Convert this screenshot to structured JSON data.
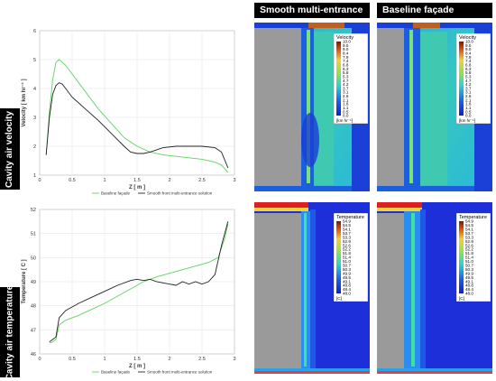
{
  "headers": {
    "smooth": "Smooth multi-entrance",
    "baseline": "Baseline façade"
  },
  "row_labels": {
    "velocity": "Cavity air velocity",
    "temperature": "Cavity air temperature"
  },
  "colorbars": {
    "velocity": {
      "title": "Velocity",
      "unit": "[km hr⁻¹]",
      "ticks": [
        "10.0",
        "9.5",
        "9.0",
        "8.4",
        "7.9",
        "7.4",
        "6.8",
        "6.3",
        "5.8",
        "5.3",
        "4.7",
        "4.2",
        "3.7",
        "3.1",
        "2.6",
        "2.1",
        "1.6",
        "1.1",
        "0.5",
        "0.0"
      ]
    },
    "temperature": {
      "title": "Temperature",
      "unit": "[C]",
      "ticks": [
        "54.9",
        "54.5",
        "54.1",
        "53.7",
        "53.3",
        "52.9",
        "52.6",
        "52.2",
        "51.8",
        "51.4",
        "51.0",
        "50.7",
        "50.3",
        "49.9",
        "49.5",
        "49.1",
        "48.8",
        "48.4",
        "48.0"
      ]
    }
  },
  "colors": {
    "baseline": "#5fd35f",
    "smooth": "#222222"
  },
  "chart_data": [
    {
      "type": "line",
      "xlabel": "Z [ m ]",
      "ylabel": "Velocity [ km hr⁻¹ ]",
      "xlim": [
        0,
        3
      ],
      "ylim": [
        1,
        6
      ],
      "xticks": [
        "0",
        "0.5",
        "1",
        "1.5",
        "2",
        "2.5",
        "3"
      ],
      "yticks": [
        "1",
        "2",
        "3",
        "4",
        "5",
        "6"
      ],
      "grid": true,
      "legend": "bottom",
      "series": [
        {
          "name": "Baseline façade",
          "x": [
            0.1,
            0.15,
            0.2,
            0.25,
            0.3,
            0.4,
            0.5,
            0.7,
            0.9,
            1.1,
            1.3,
            1.5,
            1.7,
            1.9,
            2.1,
            2.3,
            2.5,
            2.7,
            2.8,
            2.9
          ],
          "y": [
            1.7,
            3.2,
            4.3,
            4.9,
            5.0,
            4.8,
            4.5,
            3.9,
            3.3,
            2.8,
            2.3,
            2.0,
            1.8,
            1.7,
            1.65,
            1.6,
            1.55,
            1.45,
            1.35,
            1.1
          ]
        },
        {
          "name": "Smooth front multi-entrance solution",
          "x": [
            0.1,
            0.15,
            0.2,
            0.25,
            0.3,
            0.35,
            0.4,
            0.5,
            0.6,
            0.7,
            0.9,
            1.1,
            1.3,
            1.4,
            1.5,
            1.6,
            1.7,
            1.9,
            2.1,
            2.3,
            2.5,
            2.7,
            2.8,
            2.9
          ],
          "y": [
            1.7,
            3.0,
            3.8,
            4.1,
            4.2,
            4.15,
            4.0,
            3.7,
            3.5,
            3.3,
            2.9,
            2.45,
            2.0,
            1.8,
            1.75,
            1.75,
            1.8,
            1.95,
            2.0,
            2.0,
            2.0,
            1.95,
            1.8,
            1.25
          ]
        }
      ]
    },
    {
      "type": "line",
      "xlabel": "Z [ m ]",
      "ylabel": "Temperature [ C ]",
      "xlim": [
        0,
        3
      ],
      "ylim": [
        46,
        52
      ],
      "xticks": [
        "0",
        "0.5",
        "1",
        "1.5",
        "2",
        "2.5",
        "3"
      ],
      "yticks": [
        "46",
        "47",
        "48",
        "49",
        "50",
        "51",
        "52"
      ],
      "grid": true,
      "legend": "bottom",
      "series": [
        {
          "name": "Baseline façade",
          "x": [
            0.15,
            0.2,
            0.25,
            0.3,
            0.4,
            0.6,
            0.8,
            1.0,
            1.2,
            1.4,
            1.6,
            1.8,
            2.0,
            2.2,
            2.4,
            2.6,
            2.75,
            2.85,
            2.9
          ],
          "y": [
            46.45,
            46.5,
            46.6,
            47.2,
            47.4,
            47.6,
            47.85,
            48.1,
            48.4,
            48.7,
            49.0,
            49.2,
            49.35,
            49.5,
            49.65,
            49.8,
            50.0,
            50.8,
            51.4
          ]
        },
        {
          "name": "Smooth front multi-entrance solution",
          "x": [
            0.15,
            0.2,
            0.25,
            0.3,
            0.4,
            0.6,
            0.8,
            1.0,
            1.2,
            1.4,
            1.5,
            1.6,
            1.7,
            1.8,
            1.9,
            2.0,
            2.1,
            2.2,
            2.3,
            2.4,
            2.5,
            2.6,
            2.7,
            2.8,
            2.9
          ],
          "y": [
            46.5,
            46.6,
            46.7,
            47.5,
            47.8,
            48.1,
            48.35,
            48.6,
            48.85,
            49.05,
            49.1,
            49.05,
            49.1,
            49.0,
            48.95,
            48.9,
            48.85,
            49.0,
            48.9,
            49.0,
            48.9,
            49.0,
            49.3,
            50.5,
            51.5
          ]
        }
      ]
    }
  ]
}
